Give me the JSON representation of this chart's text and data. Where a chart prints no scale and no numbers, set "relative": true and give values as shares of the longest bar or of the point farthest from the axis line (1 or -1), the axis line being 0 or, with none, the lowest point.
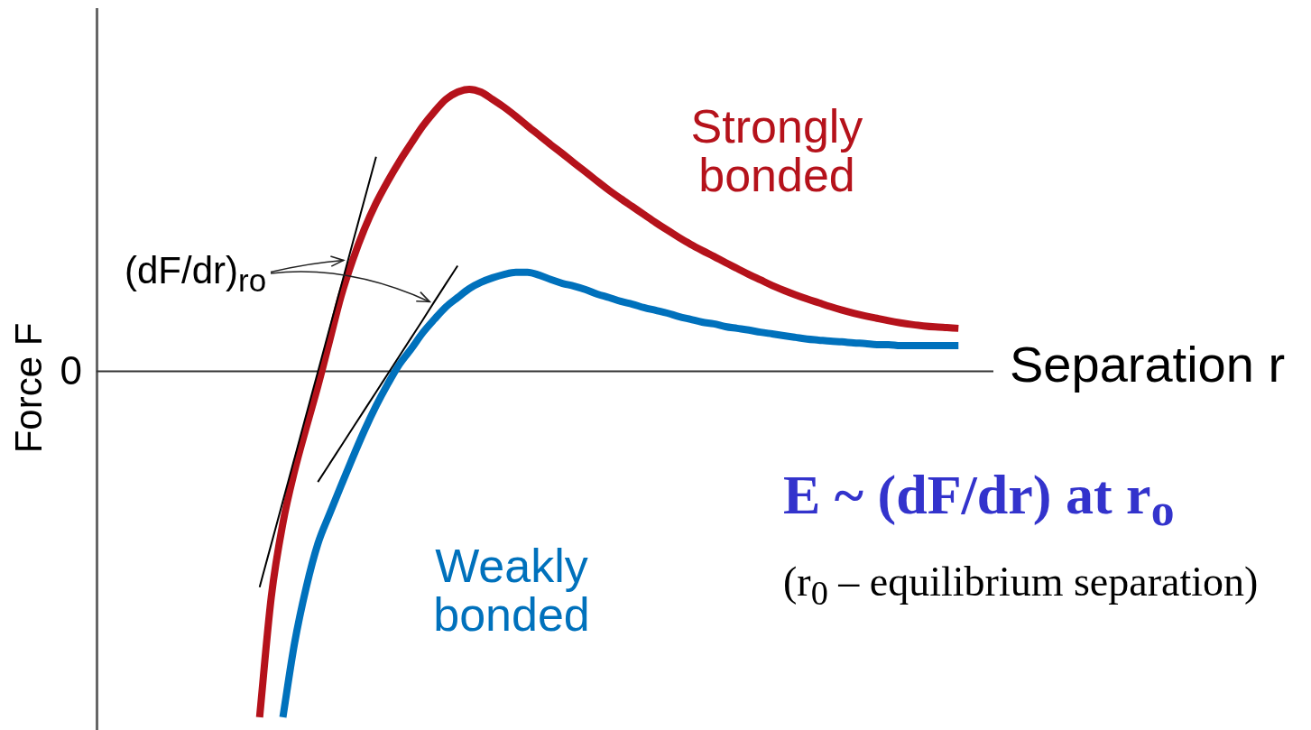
{
  "chart_data": {
    "type": "line",
    "xlabel": "Separation r",
    "ylabel": "Force F",
    "relative": true,
    "marker": "none",
    "categories": [
      null,
      null,
      null,
      null,
      null,
      null,
      null,
      null,
      null,
      null,
      null,
      null,
      null,
      null,
      null,
      null,
      null,
      null,
      null,
      null,
      null,
      null,
      null,
      null,
      null,
      null,
      null,
      null,
      null,
      null,
      null,
      null,
      null,
      null,
      null,
      null,
      null,
      null,
      null,
      null,
      null,
      null,
      null,
      null,
      null,
      null,
      null,
      null,
      null,
      null,
      null,
      null,
      null,
      null,
      null,
      null,
      null,
      null,
      null,
      null,
      null,
      null,
      null,
      null,
      null,
      null,
      null,
      null,
      null,
      null,
      null,
      null,
      null,
      null,
      null,
      null,
      null,
      null
    ],
    "series": [
      {
        "name": "Strongly bonded",
        "color": "#b5121b",
        "values": [
          null,
          null,
          null,
          null,
          null,
          null,
          null,
          null,
          null,
          null,
          null,
          null,
          null,
          null,
          -1,
          -0.653,
          -0.439,
          -0.288,
          -0.163,
          -0.043,
          0.087,
          0.218,
          0.322,
          0.411,
          0.486,
          0.549,
          0.606,
          0.658,
          0.708,
          0.75,
          0.786,
          0.807,
          0.815,
          0.807,
          0.786,
          0.763,
          0.737,
          0.709,
          0.682,
          0.655,
          0.629,
          0.602,
          0.576,
          0.549,
          0.523,
          0.499,
          0.476,
          0.453,
          0.43,
          0.408,
          0.387,
          0.367,
          0.349,
          0.332,
          0.314,
          0.297,
          0.28,
          0.264,
          0.248,
          0.234,
          0.221,
          0.209,
          0.198,
          0.187,
          0.177,
          0.168,
          0.16,
          0.153,
          0.146,
          0.14,
          0.135,
          0.131,
          0.128,
          0.126,
          0.124,
          null,
          null,
          null
        ]
      },
      {
        "name": "Weakly bonded",
        "color": "#0071bc",
        "values": [
          null,
          null,
          null,
          null,
          null,
          null,
          null,
          null,
          null,
          null,
          null,
          null,
          null,
          null,
          null,
          null,
          -1,
          -0.786,
          -0.625,
          -0.499,
          -0.413,
          -0.33,
          -0.249,
          -0.171,
          -0.1,
          -0.037,
          0.02,
          0.064,
          0.111,
          0.15,
          0.186,
          0.213,
          0.239,
          0.257,
          0.27,
          0.28,
          0.286,
          0.286,
          0.278,
          0.265,
          0.254,
          0.246,
          0.236,
          0.223,
          0.213,
          0.202,
          0.194,
          0.184,
          0.176,
          0.168,
          0.158,
          0.15,
          0.142,
          0.137,
          0.129,
          0.124,
          0.119,
          0.113,
          0.108,
          0.103,
          0.098,
          0.093,
          0.09,
          0.087,
          0.085,
          0.082,
          0.08,
          0.077,
          0.077,
          0.074,
          0.074,
          0.074,
          0.074,
          0.074,
          0.074,
          null,
          null,
          null
        ]
      },
      {
        "color": "#000000",
        "values": [
          null,
          null,
          null,
          null,
          null,
          null,
          null,
          null,
          null,
          null,
          null,
          null,
          null,
          null,
          -0.624,
          -0.5,
          -0.375,
          -0.251,
          -0.126,
          -0.002,
          0.123,
          0.247,
          0.372,
          0.496,
          0.62,
          null,
          null,
          null,
          null,
          null,
          null,
          null,
          null,
          null,
          null,
          null,
          null,
          null,
          null,
          null,
          null,
          null,
          null,
          null,
          null,
          null,
          null,
          null,
          null,
          null,
          null,
          null,
          null,
          null,
          null,
          null,
          null,
          null,
          null,
          null,
          null,
          null,
          null,
          null,
          null,
          null,
          null,
          null,
          null,
          null,
          null,
          null,
          null,
          null,
          null,
          null,
          null,
          null
        ]
      },
      {
        "color": "#000000",
        "values": [
          null,
          null,
          null,
          null,
          null,
          null,
          null,
          null,
          null,
          null,
          null,
          null,
          null,
          null,
          null,
          null,
          null,
          null,
          null,
          -0.32,
          -0.268,
          -0.216,
          -0.164,
          -0.112,
          -0.06,
          -0.008,
          0.044,
          0.096,
          0.148,
          0.201,
          0.253,
          0.305,
          null,
          null,
          null,
          null,
          null,
          null,
          null,
          null,
          null,
          null,
          null,
          null,
          null,
          null,
          null,
          null,
          null,
          null,
          null,
          null,
          null,
          null,
          null,
          null,
          null,
          null,
          null,
          null,
          null,
          null,
          null,
          null,
          null,
          null,
          null,
          null,
          null,
          null,
          null,
          null,
          null,
          null,
          null,
          null,
          null,
          null
        ]
      }
    ],
    "ref_lines": [
      {
        "axis": "y",
        "value": 0,
        "label": "0"
      }
    ],
    "annotations": [
      "(dF/dr)$_{ro}$",
      "E ~ (dF/dr) at r$_{o}$",
      "(r$_{0}$ – equilibrium separation)"
    ]
  }
}
